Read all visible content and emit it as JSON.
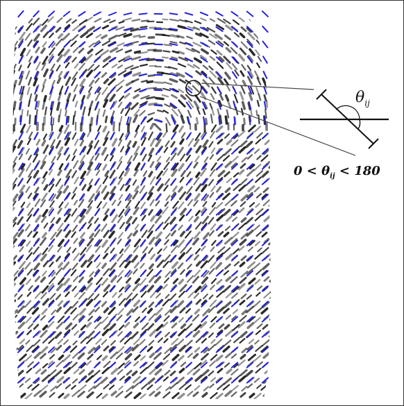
{
  "figure": {
    "angle_symbol": "θ",
    "angle_subscript": "ij",
    "range_lower": "0 <",
    "range_upper": "< 180",
    "line_color_ridge": "#111111",
    "line_color_orientation": "#2222dd",
    "icons": [
      "fingerprint-ridge-image",
      "orientation-field",
      "magnifier-circle",
      "angle-diagram"
    ]
  }
}
